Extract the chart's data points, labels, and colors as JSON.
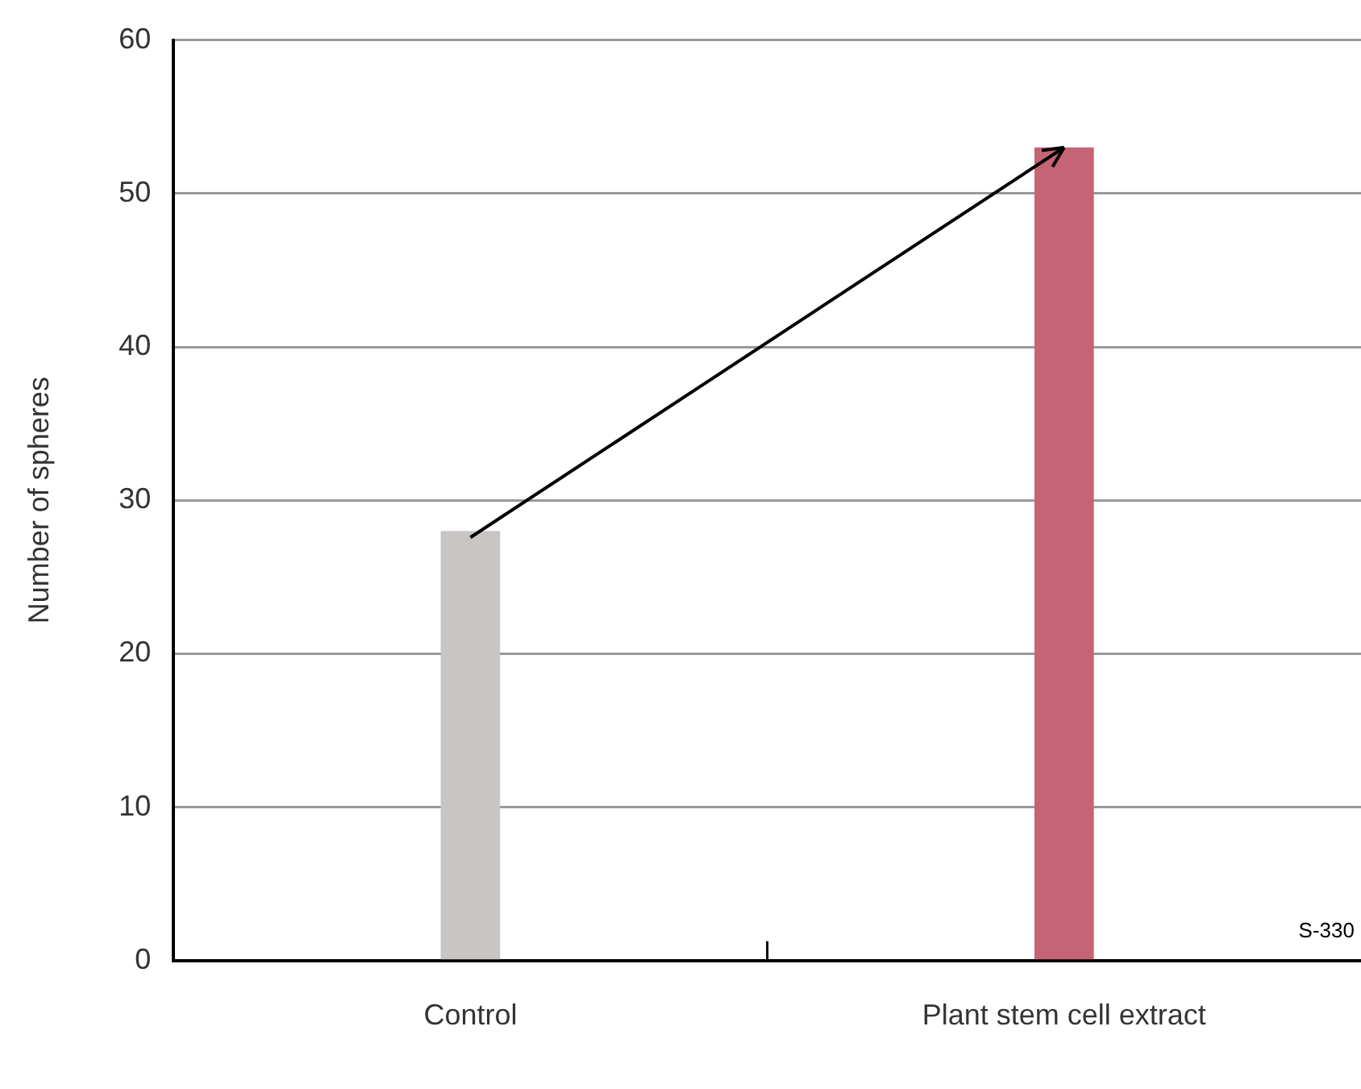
{
  "chart_data": {
    "type": "bar",
    "ylabel": "Number of spheres",
    "categories": [
      "Control",
      "Plant stem cell extract"
    ],
    "values": [
      28,
      53
    ],
    "colors": [
      "#c8c5c4",
      "#c46475"
    ],
    "ylim": [
      0,
      60
    ],
    "yticks": [
      0,
      10,
      20,
      30,
      40,
      50,
      60
    ],
    "grid": "y",
    "annotations": [
      "S-330"
    ]
  }
}
